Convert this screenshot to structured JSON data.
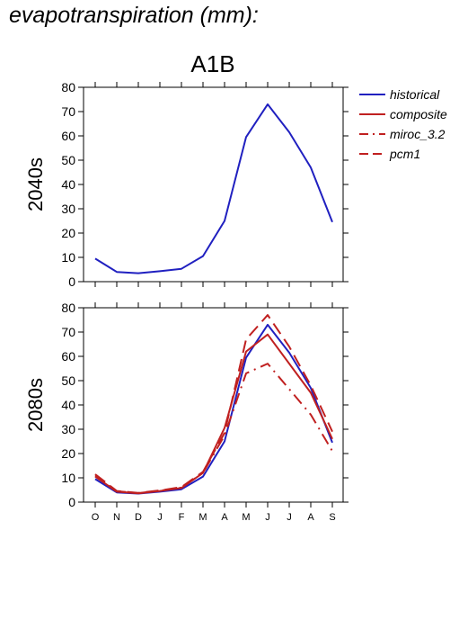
{
  "page_title": "evapotranspiration (mm):",
  "chart_data": {
    "type": "line",
    "title": "A1B",
    "categories": [
      "O",
      "N",
      "D",
      "J",
      "F",
      "M",
      "A",
      "M",
      "J",
      "J",
      "A",
      "S"
    ],
    "yticks": [
      "0",
      "10",
      "20",
      "30",
      "40",
      "50",
      "60",
      "70",
      "80"
    ],
    "ylim": [
      0,
      80
    ],
    "grid": false,
    "legend_position": "right",
    "legend": [
      {
        "label": "historical",
        "color": "#2020c0",
        "style": "solid"
      },
      {
        "label": "composite",
        "color": "#c02020",
        "style": "solid"
      },
      {
        "label": "miroc_3.2",
        "color": "#c02020",
        "style": "dash-dot"
      },
      {
        "label": "pcm1",
        "color": "#c02020",
        "style": "dashed"
      }
    ],
    "panels": [
      {
        "label": "2040s",
        "series": [
          {
            "name": "historical",
            "color": "#2020c0",
            "style": "solid",
            "values": [
              9.5,
              4,
              3.5,
              4.3,
              5.3,
              10.5,
              25,
              59.5,
              73,
              61.5,
              47,
              24.5
            ]
          }
        ]
      },
      {
        "label": "2080s",
        "series": [
          {
            "name": "historical",
            "color": "#2020c0",
            "style": "solid",
            "values": [
              9.5,
              4,
              3.5,
              4.3,
              5.3,
              10.5,
              25,
              59.5,
              73,
              61.5,
              47,
              24.5
            ]
          },
          {
            "name": "composite",
            "color": "#c02020",
            "style": "solid",
            "values": [
              10.5,
              4.3,
              3.6,
              4.6,
              5.8,
              12,
              30.5,
              62,
              69,
              57,
              45,
              26
            ]
          },
          {
            "name": "miroc_3.2",
            "color": "#c02020",
            "style": "dash-dot",
            "values": [
              11,
              4.5,
              3.7,
              4.7,
              6,
              12,
              27.5,
              53,
              57,
              46.5,
              36,
              21
            ]
          },
          {
            "name": "pcm1",
            "color": "#c02020",
            "style": "dashed",
            "values": [
              11.5,
              4.6,
              3.8,
              4.8,
              6.2,
              12.5,
              28.5,
              67,
              77,
              64,
              48,
              29
            ]
          }
        ]
      }
    ]
  }
}
